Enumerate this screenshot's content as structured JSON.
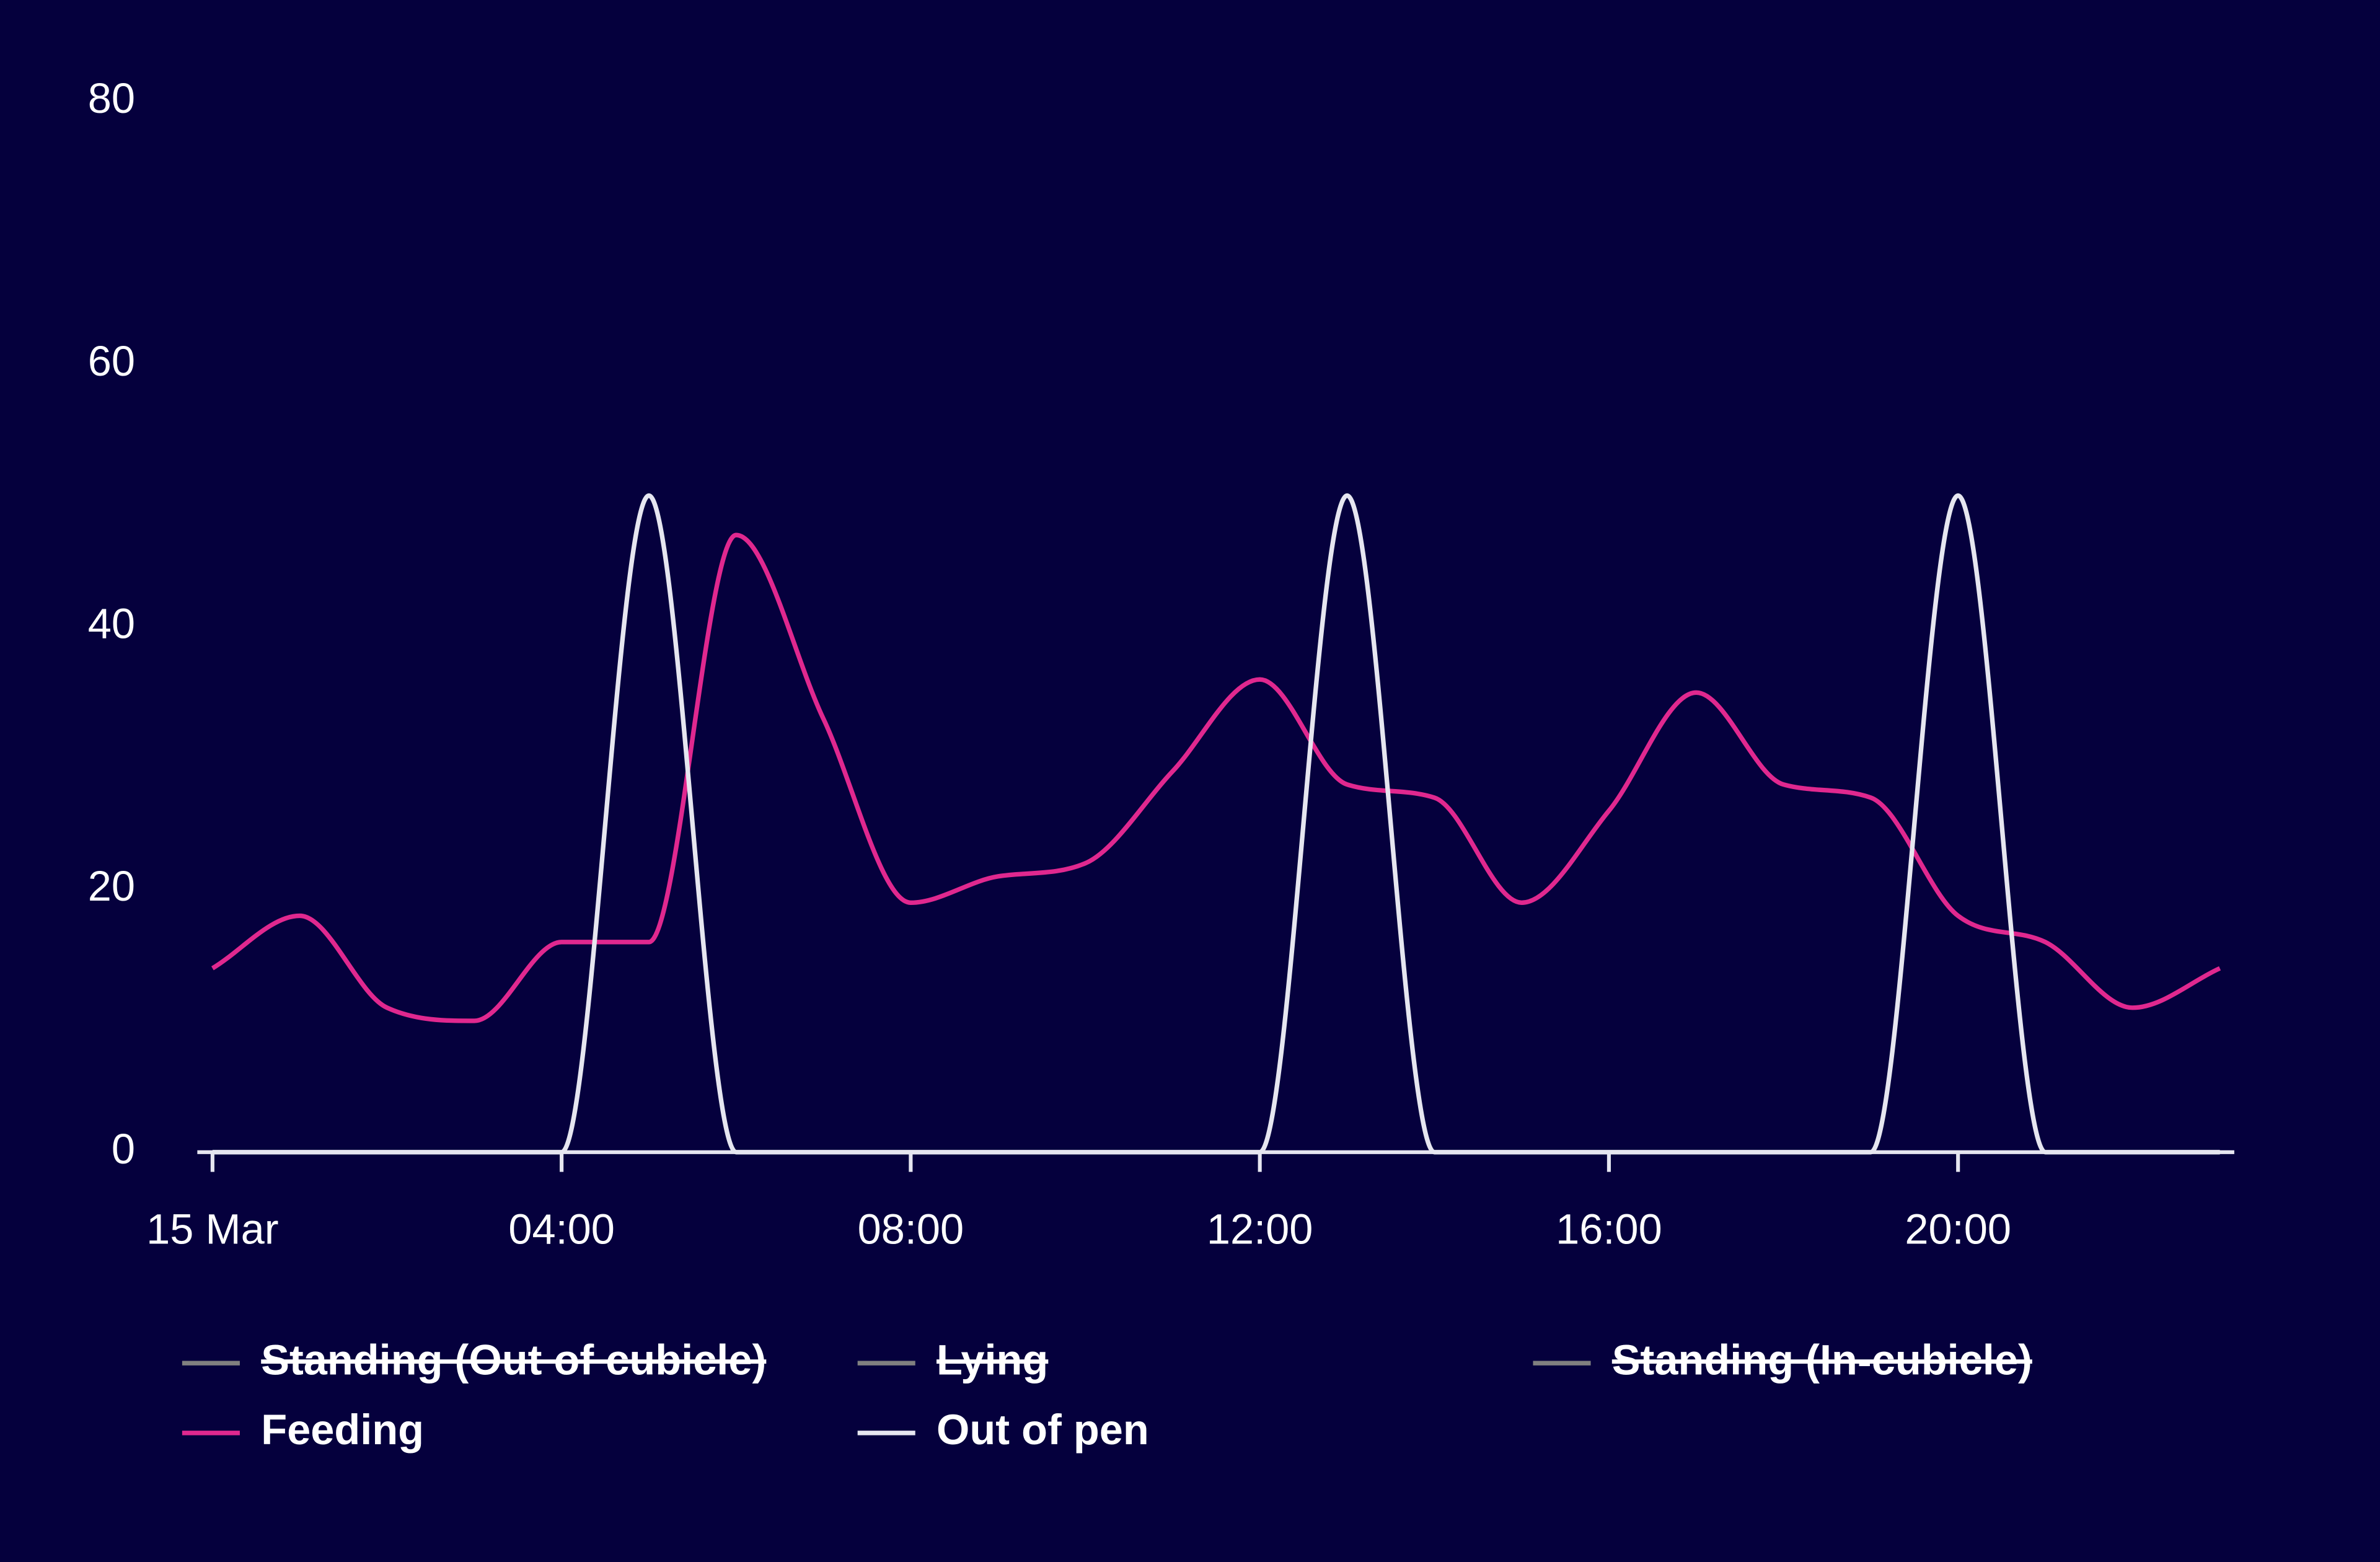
{
  "chart_data": {
    "type": "line",
    "categories": [
      "15 Mar",
      null,
      null,
      null,
      "04:00",
      null,
      null,
      null,
      "08:00",
      null,
      null,
      null,
      "12:00",
      null,
      null,
      null,
      "16:00",
      null,
      null,
      null,
      "20:00",
      null,
      null,
      null
    ],
    "ylim": [
      0,
      80
    ],
    "yticks": [
      0,
      20,
      40,
      60,
      80
    ],
    "grid": false,
    "legend": "bottom",
    "series": [
      {
        "name": "Standing (Out of cubicle)",
        "color": "#808080",
        "visible": false
      },
      {
        "name": "Lying",
        "color": "#808080",
        "visible": false
      },
      {
        "name": "Standing (In-cubicle)",
        "color": "#808080",
        "visible": false
      },
      {
        "name": "Feeding",
        "color": "#e0288f",
        "visible": true,
        "values": [
          14,
          18,
          11,
          10,
          16,
          16,
          47,
          33,
          19,
          21,
          22,
          29,
          36,
          28,
          27,
          19,
          26,
          35,
          28,
          27,
          18,
          16,
          11,
          14
        ]
      },
      {
        "name": "Out of pen",
        "color": "#e6e6f0",
        "visible": true,
        "values": [
          0,
          0,
          0,
          0,
          0,
          50,
          0,
          0,
          0,
          0,
          0,
          0,
          0,
          50,
          0,
          0,
          0,
          0,
          0,
          0,
          50,
          0,
          0,
          0
        ]
      }
    ]
  }
}
